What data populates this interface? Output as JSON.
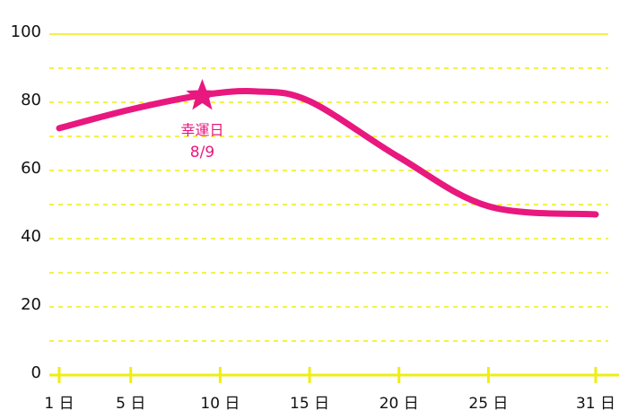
{
  "chart_data": {
    "type": "line",
    "x": [
      1,
      5,
      9,
      12,
      15,
      20,
      25,
      31
    ],
    "series": [
      {
        "color": "#e8187f",
        "values": [
          72.4,
          77.9,
          82.1,
          83.2,
          80.3,
          63.9,
          49.5,
          47.1
        ]
      }
    ],
    "xlim": [
      1,
      31
    ],
    "xticks": [
      {
        "value": 1,
        "label": "1 日"
      },
      {
        "value": 5,
        "label": "5 日"
      },
      {
        "value": 10,
        "label": "10 日"
      },
      {
        "value": 15,
        "label": "15 日"
      },
      {
        "value": 20,
        "label": "20 日"
      },
      {
        "value": 25,
        "label": "25 日"
      },
      {
        "value": 31,
        "label": "31 日"
      }
    ],
    "ylim": [
      0,
      100
    ],
    "yticks": [
      0,
      20,
      40,
      60,
      80,
      100
    ],
    "minor_yticks": [
      10,
      30,
      50,
      70,
      90
    ],
    "grid": true,
    "grid_color": "#eeee11",
    "annotation": {
      "x": 9,
      "y": 82.1,
      "label": "幸運日",
      "sublabel": "8/9",
      "color": "#e8187f"
    }
  }
}
